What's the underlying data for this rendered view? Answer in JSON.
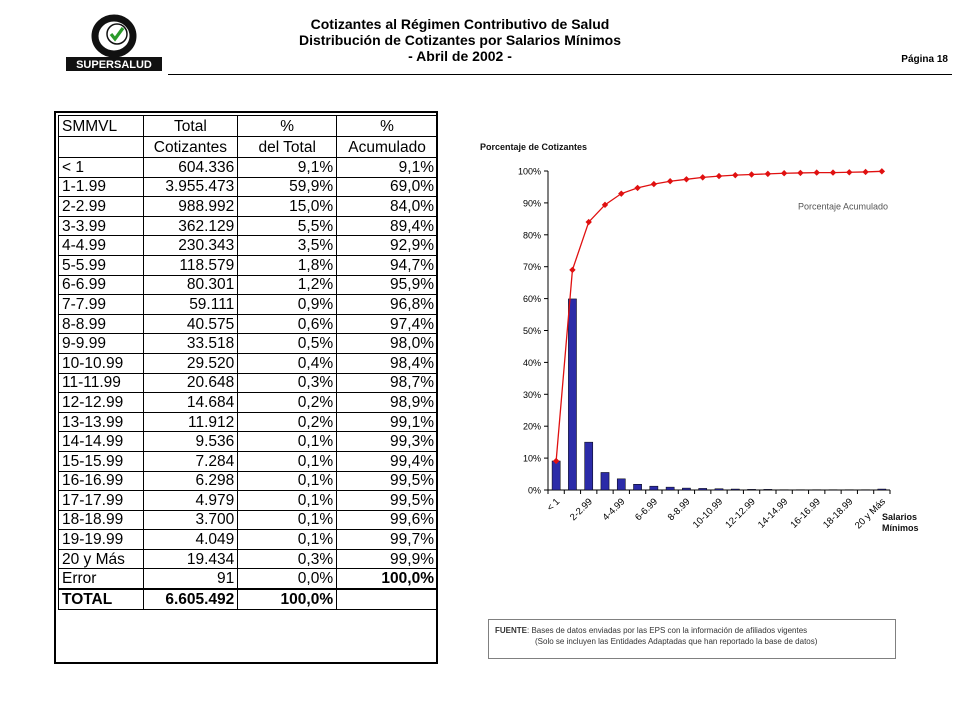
{
  "header": {
    "logo_text": "SUPERSALUD",
    "title_line1": "Cotizantes al Régimen Contributivo de Salud",
    "title_line2": "Distribución de Cotizantes por Salarios Mínimos",
    "title_line3": "- Abril de 2002 -",
    "page_label": "Página 18"
  },
  "table": {
    "headers": [
      [
        "SMMVL",
        "Total",
        "%",
        "%"
      ],
      [
        "",
        "Cotizantes",
        "del Total",
        "Acumulado"
      ]
    ],
    "rows": [
      [
        "< 1",
        "604.336",
        "9,1%",
        "9,1%"
      ],
      [
        "1-1.99",
        "3.955.473",
        "59,9%",
        "69,0%"
      ],
      [
        "2-2.99",
        "988.992",
        "15,0%",
        "84,0%"
      ],
      [
        "3-3.99",
        "362.129",
        "5,5%",
        "89,4%"
      ],
      [
        "4-4.99",
        "230.343",
        "3,5%",
        "92,9%"
      ],
      [
        "5-5.99",
        "118.579",
        "1,8%",
        "94,7%"
      ],
      [
        "6-6.99",
        "80.301",
        "1,2%",
        "95,9%"
      ],
      [
        "7-7.99",
        "59.111",
        "0,9%",
        "96,8%"
      ],
      [
        "8-8.99",
        "40.575",
        "0,6%",
        "97,4%"
      ],
      [
        "9-9.99",
        "33.518",
        "0,5%",
        "98,0%"
      ],
      [
        "10-10.99",
        "29.520",
        "0,4%",
        "98,4%"
      ],
      [
        "11-11.99",
        "20.648",
        "0,3%",
        "98,7%"
      ],
      [
        "12-12.99",
        "14.684",
        "0,2%",
        "98,9%"
      ],
      [
        "13-13.99",
        "11.912",
        "0,2%",
        "99,1%"
      ],
      [
        "14-14.99",
        "9.536",
        "0,1%",
        "99,3%"
      ],
      [
        "15-15.99",
        "7.284",
        "0,1%",
        "99,4%"
      ],
      [
        "16-16.99",
        "6.298",
        "0,1%",
        "99,5%"
      ],
      [
        "17-17.99",
        "4.979",
        "0,1%",
        "99,5%"
      ],
      [
        "18-18.99",
        "3.700",
        "0,1%",
        "99,6%"
      ],
      [
        "19-19.99",
        "4.049",
        "0,1%",
        "99,7%"
      ],
      [
        "20 y Más",
        "19.434",
        "0,3%",
        "99,9%"
      ],
      [
        "Error",
        "91",
        "0,0%",
        "100,0%"
      ]
    ],
    "total": [
      "TOTAL",
      "6.605.492",
      "100,0%",
      ""
    ]
  },
  "chart_data": {
    "type": "bar",
    "title": "Porcentaje de Cotizantes",
    "xlabel": "Salarios Mínimos",
    "ylabel": "",
    "ylim": [
      0,
      100
    ],
    "yticks": [
      "0%",
      "10%",
      "20%",
      "30%",
      "40%",
      "50%",
      "60%",
      "70%",
      "80%",
      "90%",
      "100%"
    ],
    "categories": [
      "< 1",
      "1-1.99",
      "2-2.99",
      "3-3.99",
      "4-4.99",
      "5-5.99",
      "6-6.99",
      "7-7.99",
      "8-8.99",
      "9-9.99",
      "10-10.99",
      "11-11.99",
      "12-12.99",
      "13-13.99",
      "14-14.99",
      "15-15.99",
      "16-16.99",
      "17-17.99",
      "18-18.99",
      "19-19.99",
      "20 y Más"
    ],
    "tick_labels": [
      "< 1",
      "2-2.99",
      "4-4.99",
      "6-6.99",
      "8-8.99",
      "10-10.99",
      "12-12.99",
      "14-14.99",
      "16-16.99",
      "18-18.99",
      "20 y Más"
    ],
    "series": [
      {
        "values": [
          9.1,
          59.9,
          15.0,
          5.5,
          3.5,
          1.8,
          1.2,
          0.9,
          0.6,
          0.5,
          0.4,
          0.3,
          0.2,
          0.2,
          0.1,
          0.1,
          0.1,
          0.1,
          0.1,
          0.1,
          0.3
        ],
        "color": "#2b2ba8"
      },
      {
        "name": "Porcentaje Acumulado",
        "type": "line",
        "values": [
          9.1,
          69.0,
          84.0,
          89.4,
          92.9,
          94.7,
          95.9,
          96.8,
          97.4,
          98.0,
          98.4,
          98.7,
          98.9,
          99.1,
          99.3,
          99.4,
          99.5,
          99.5,
          99.6,
          99.7,
          99.9
        ],
        "color": "#e01010"
      }
    ],
    "grid": false
  },
  "source": {
    "label": "FUENTE",
    "line1": ": Bases de datos enviadas por las EPS con la información de afiliados vigentes",
    "line2": "(Solo se incluyen las Entidades Adaptadas que han reportado la base de datos)"
  }
}
